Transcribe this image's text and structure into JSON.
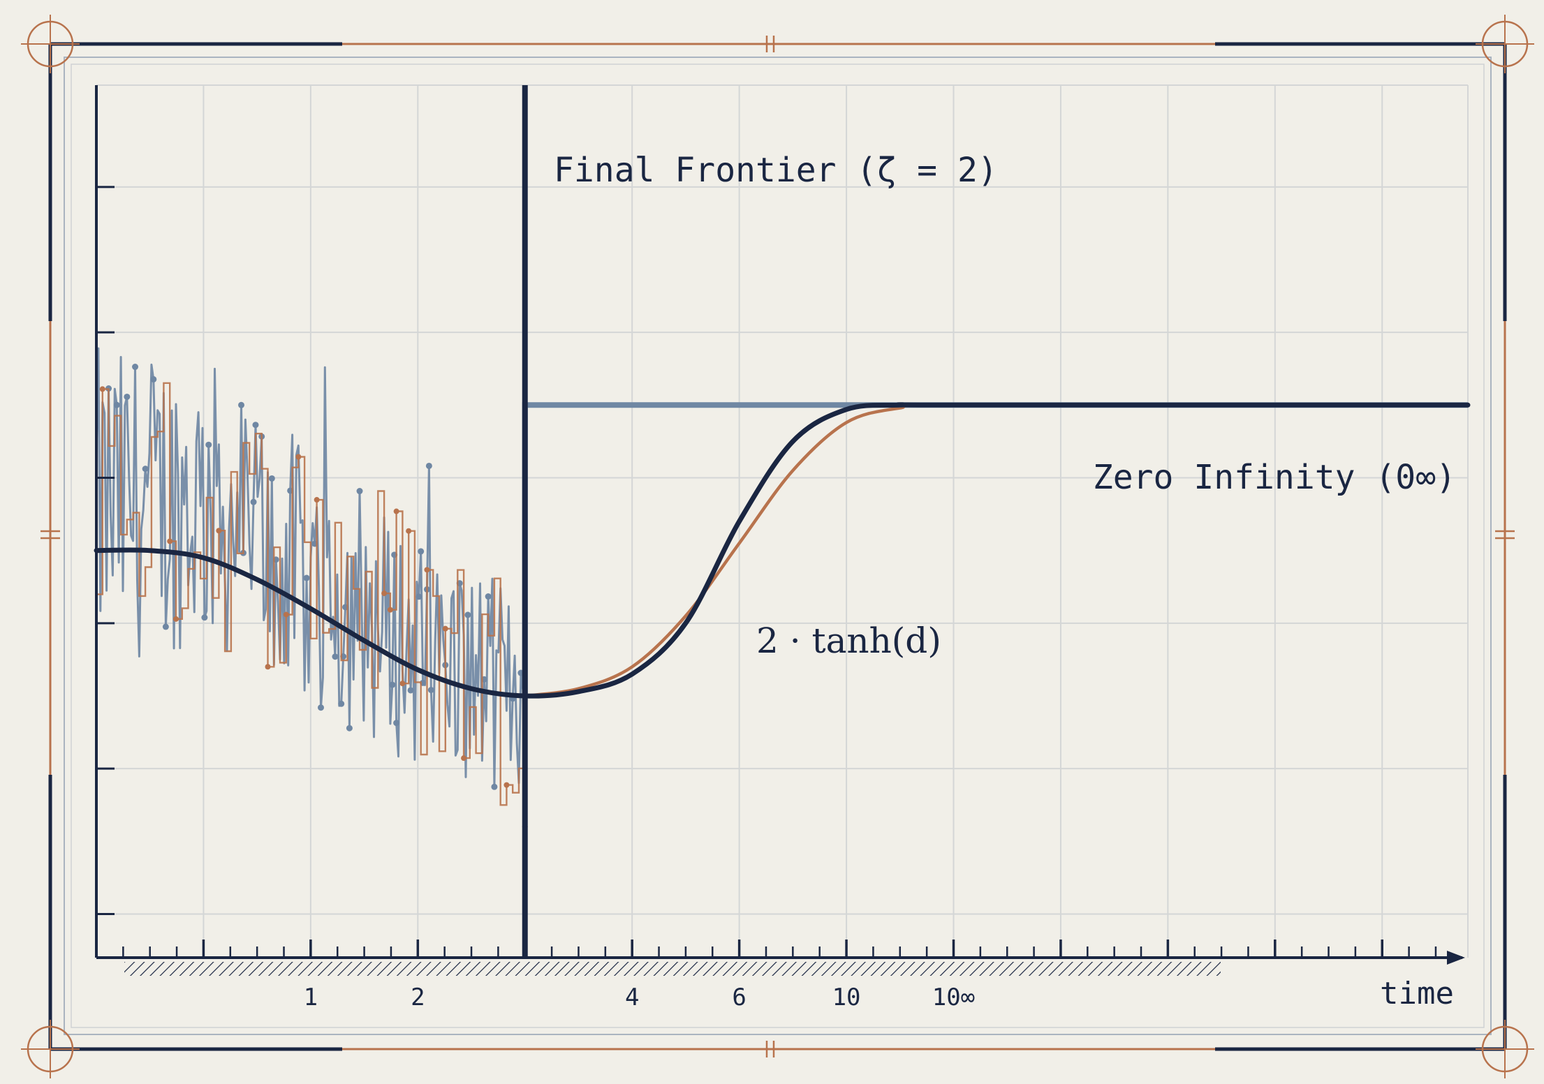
{
  "chart_data": {
    "type": "line",
    "title": "",
    "xlabel": "time",
    "ylabel": "",
    "x_tick_labels": [
      "1",
      "2",
      "4",
      "6",
      "10",
      "10∞"
    ],
    "xlim": [
      0,
      6.4
    ],
    "ylim": [
      -2.8,
      3.2
    ],
    "grid": true,
    "annotations": {
      "frontier_label": "Final Frontier (ζ = 2)",
      "zero_infinity_label": "Zero Infinity (0∞)",
      "curve_label": "2 · tanh(d)"
    },
    "frontier_x": 2.0,
    "series": [
      {
        "color": "#6f87a3",
        "style": "noisy-spikes",
        "x": [
          0.0,
          0.5,
          1.0,
          1.5,
          2.0
        ],
        "values": [
          0.3,
          0.35,
          -0.2,
          -0.7,
          -1.0
        ]
      },
      {
        "color": "#b8734d",
        "style": "noisy-steps",
        "x": [
          0.0,
          0.5,
          1.0,
          1.5,
          2.0
        ],
        "values": [
          0.5,
          0.2,
          0.0,
          -0.6,
          -1.0
        ]
      },
      {
        "color": "#1a2642",
        "style": "smooth",
        "x": [
          0.0,
          0.25,
          0.5,
          0.75,
          1.0,
          1.25,
          1.5,
          1.75,
          2.0,
          2.25,
          2.5,
          2.75,
          3.0,
          3.25,
          3.5,
          3.75,
          4.0,
          6.4
        ],
        "values": [
          0.0,
          0.0,
          -0.05,
          -0.2,
          -0.4,
          -0.62,
          -0.82,
          -0.95,
          -1.0,
          -0.97,
          -0.85,
          -0.5,
          0.2,
          0.75,
          0.97,
          1.0,
          1.0,
          1.0
        ]
      },
      {
        "color": "#b8734d",
        "style": "smooth",
        "x": [
          2.0,
          2.25,
          2.5,
          2.75,
          3.0,
          3.25,
          3.5,
          3.75,
          4.0,
          6.4
        ],
        "values": [
          -1.0,
          -0.95,
          -0.8,
          -0.45,
          0.05,
          0.55,
          0.88,
          0.98,
          1.0,
          1.0
        ]
      },
      {
        "color": "#6f87a3",
        "style": "step",
        "x": [
          2.0,
          2.0,
          6.4
        ],
        "values": [
          -1.0,
          1.0,
          1.0
        ]
      }
    ]
  },
  "colors": {
    "background": "#f1efe8",
    "navy": "#1a2642",
    "slate": "#6f87a3",
    "rust": "#b8734d",
    "grid": "#d4d6d6"
  }
}
